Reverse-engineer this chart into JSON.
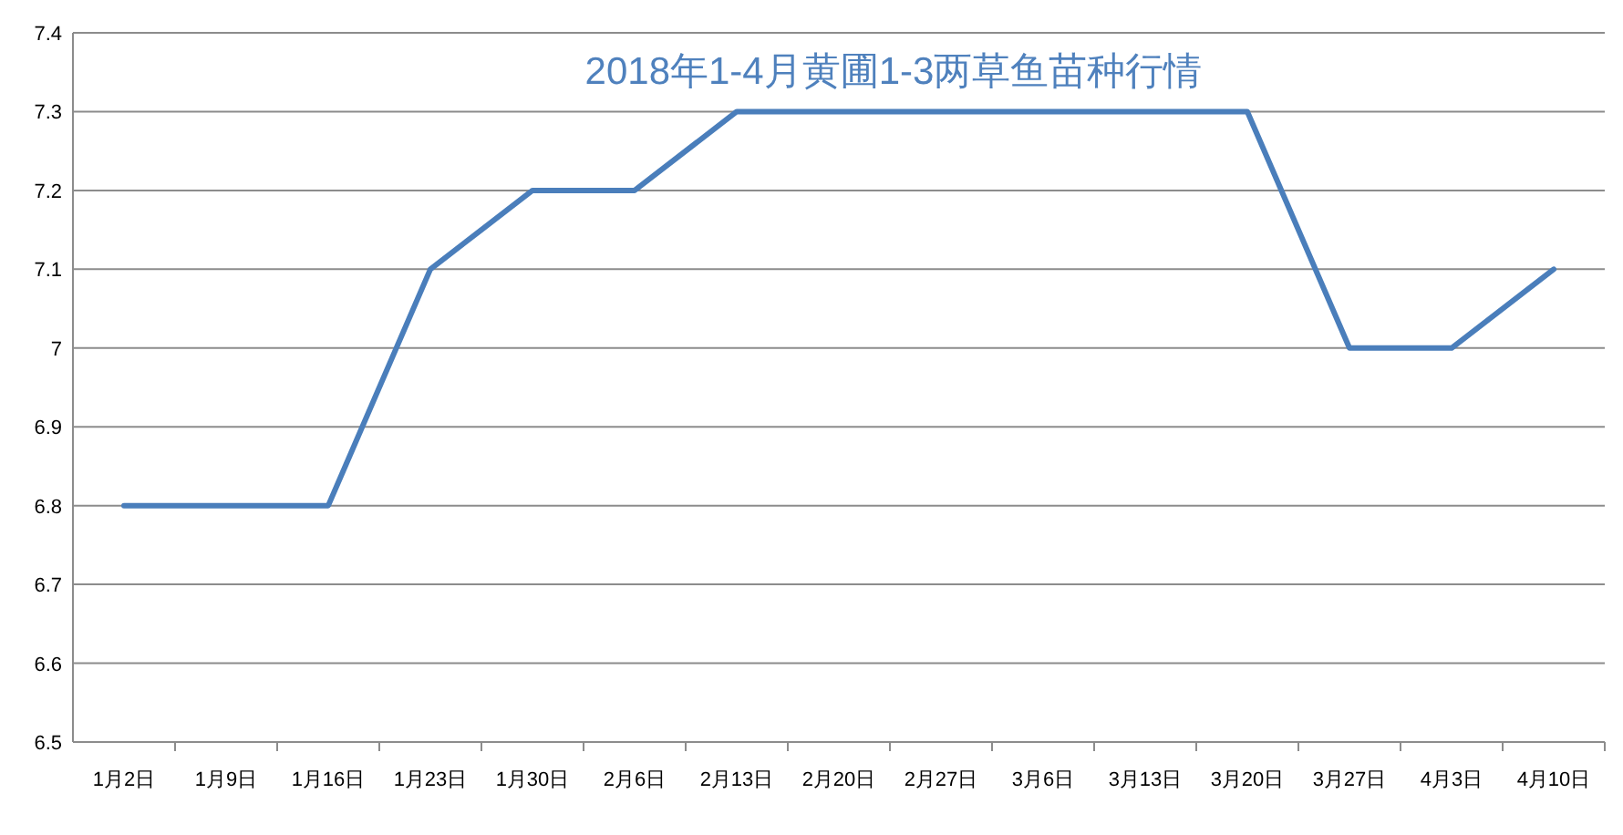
{
  "chart_data": {
    "type": "line",
    "title": "2018年1-4月黄圃1-3两草鱼苗种行情",
    "categories": [
      "1月2日",
      "1月9日",
      "1月16日",
      "1月23日",
      "1月30日",
      "2月6日",
      "2月13日",
      "2月20日",
      "2月27日",
      "3月6日",
      "3月13日",
      "3月20日",
      "3月27日",
      "4月3日",
      "4月10日"
    ],
    "series": [
      {
        "color": "#4a7ebb",
        "values": [
          6.8,
          6.8,
          6.8,
          7.1,
          7.2,
          7.2,
          7.3,
          7.3,
          7.3,
          7.3,
          7.3,
          7.3,
          7.0,
          7.0,
          7.1
        ]
      }
    ],
    "ylim": [
      6.5,
      7.4
    ],
    "yticks": [
      6.5,
      6.6,
      6.7,
      6.8,
      6.9,
      7,
      7.1,
      7.2,
      7.3,
      7.4
    ],
    "grid": "y"
  }
}
